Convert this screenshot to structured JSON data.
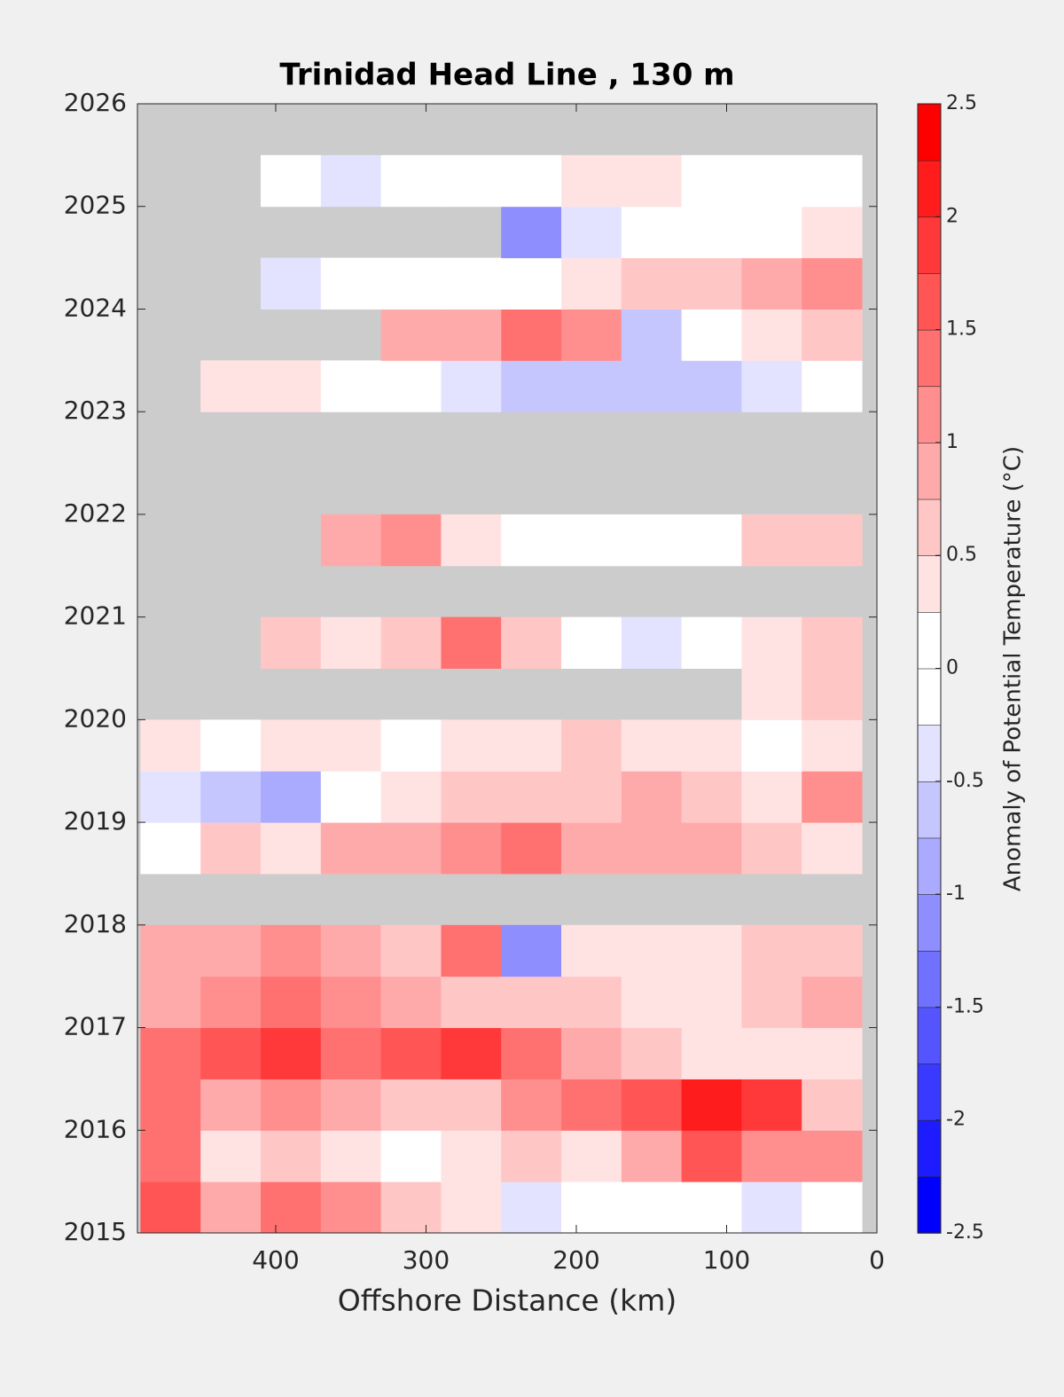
{
  "chart_data": {
    "type": "contour",
    "title": "Trinidad Head Line , 130 m",
    "x_label": "Offshore Distance (km)",
    "colorbar_label": "Anomaly of Potential Temperature (°C)",
    "x": [
      470,
      430,
      390,
      350,
      310,
      270,
      230,
      190,
      150,
      110,
      70,
      30
    ],
    "y": [
      2015.25,
      2015.75,
      2016.25,
      2016.75,
      2017.25,
      2017.75,
      2018.25,
      2018.75,
      2019.25,
      2019.75,
      2020.25,
      2020.75,
      2021.25,
      2021.75,
      2022.25,
      2022.75,
      2023.25,
      2023.75,
      2024.25,
      2024.75,
      2025.25
    ],
    "z": [
      [
        1.5,
        0.8,
        1.3,
        1.0,
        0.5,
        0.3,
        -0.3,
        0,
        0,
        0,
        -0.3,
        0
      ],
      [
        1.3,
        0.3,
        0.5,
        0.3,
        0,
        0.3,
        0.5,
        0.3,
        0.8,
        1.5,
        1.0,
        1.0
      ],
      [
        1.3,
        0.8,
        1.0,
        0.8,
        0.5,
        0.5,
        1.0,
        1.3,
        1.5,
        2.0,
        1.8,
        0.5
      ],
      [
        1.3,
        1.5,
        1.8,
        1.3,
        1.5,
        1.8,
        1.3,
        0.8,
        0.5,
        0.3,
        0.3,
        0.3
      ],
      [
        0.8,
        1.0,
        1.3,
        1.0,
        0.8,
        0.5,
        0.5,
        0.5,
        0.3,
        0.3,
        0.5,
        0.8
      ],
      [
        0.8,
        0.8,
        1.0,
        0.8,
        0.5,
        1.3,
        -1.0,
        0.3,
        0.3,
        0.3,
        0.5,
        0.5
      ],
      [
        null,
        null,
        null,
        null,
        null,
        null,
        null,
        null,
        null,
        null,
        null,
        null
      ],
      [
        0,
        0.5,
        0.3,
        0.8,
        0.8,
        1.0,
        1.3,
        0.8,
        0.8,
        0.8,
        0.5,
        0.3
      ],
      [
        -0.3,
        -0.5,
        -0.8,
        0,
        0.3,
        0.5,
        0.5,
        0.5,
        0.8,
        0.5,
        0.3,
        1.0
      ],
      [
        0.3,
        0,
        0.3,
        0.3,
        0,
        0.3,
        0.3,
        0.5,
        0.3,
        0.3,
        0,
        0.3
      ],
      [
        null,
        null,
        null,
        null,
        null,
        null,
        null,
        null,
        null,
        null,
        0.3,
        0.5
      ],
      [
        null,
        null,
        0.5,
        0.3,
        0.5,
        1.3,
        0.5,
        0,
        -0.3,
        0,
        0.3,
        0.5
      ],
      [
        null,
        null,
        null,
        null,
        null,
        null,
        null,
        null,
        null,
        null,
        null,
        null
      ],
      [
        null,
        null,
        null,
        0.8,
        1.2,
        0.3,
        0,
        -0.2,
        -0.2,
        0,
        0.5,
        0.5
      ],
      [
        null,
        null,
        null,
        null,
        null,
        null,
        null,
        null,
        null,
        null,
        null,
        null
      ],
      [
        null,
        null,
        null,
        null,
        null,
        null,
        null,
        null,
        null,
        null,
        null,
        null
      ],
      [
        null,
        0.3,
        0.3,
        0,
        0,
        -0.3,
        -0.5,
        -0.7,
        -0.5,
        -0.7,
        -0.3,
        0.2
      ],
      [
        null,
        null,
        null,
        null,
        0.8,
        0.8,
        1.3,
        1.0,
        -0.5,
        0.2,
        0.3,
        0.5
      ],
      [
        null,
        null,
        -0.3,
        0,
        0,
        0,
        0,
        0.3,
        0.5,
        0.5,
        0.8,
        1.0
      ],
      [
        null,
        null,
        null,
        null,
        null,
        null,
        -1.2,
        -0.3,
        0,
        -0.2,
        0,
        0.3
      ],
      [
        null,
        null,
        0,
        -0.3,
        -0.2,
        0,
        0,
        0.3,
        0.3,
        0.2,
        0.2,
        0
      ]
    ],
    "cell_width": 40,
    "cell_height": 0.5,
    "xlim": [
      492,
      0
    ],
    "xticks": [
      400,
      300,
      200,
      100,
      0
    ],
    "ylim": [
      2015,
      2026
    ],
    "yticks": [
      2015,
      2016,
      2017,
      2018,
      2019,
      2020,
      2021,
      2022,
      2023,
      2024,
      2025,
      2026
    ],
    "clim": [
      -2.5,
      2.5
    ],
    "cticks": [
      -2.5,
      -2,
      -1.5,
      -1,
      -0.5,
      0,
      0.5,
      1,
      1.5,
      2,
      2.5
    ],
    "level_step": 0.25,
    "low_color": "#0000ff",
    "mid_color": "#ffffff",
    "high_color": "#ff0000",
    "missing_color": "#cccccc"
  }
}
